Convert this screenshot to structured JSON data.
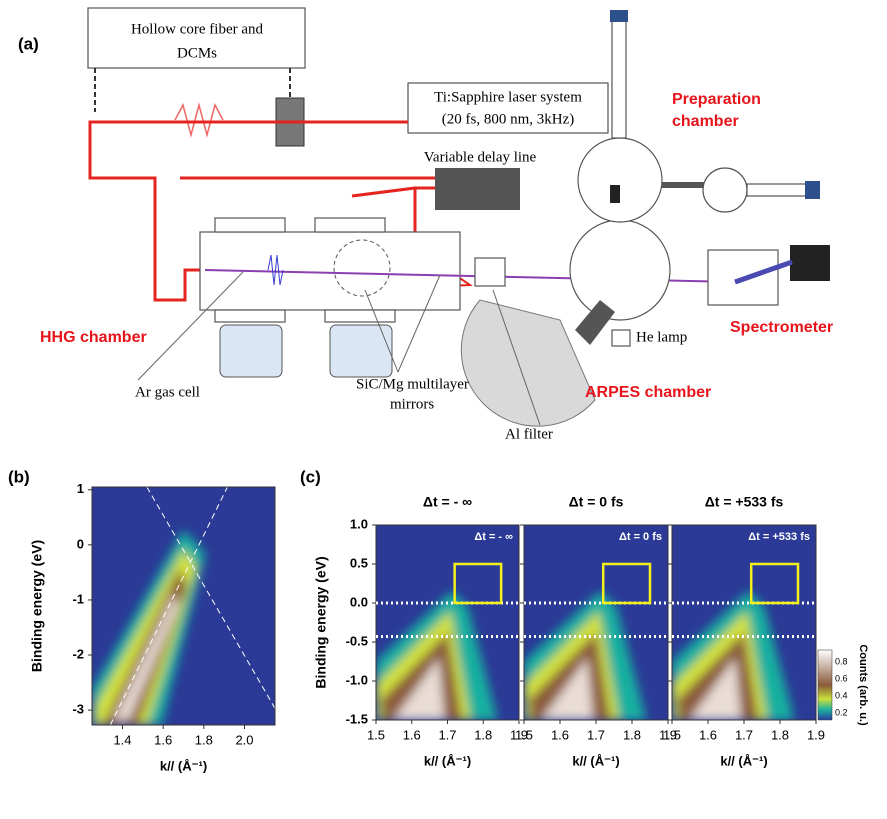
{
  "panel_a": {
    "label": "(a)",
    "fiber_box": [
      "Hollow core fiber and",
      "DCMs"
    ],
    "laser_box": [
      "Ti:Sapphire laser system",
      "(20 fs, 800 nm, 3kHz)"
    ],
    "delay_line": "Variable delay line",
    "preparation": [
      "Preparation",
      "chamber"
    ],
    "hhg": "HHG chamber",
    "gas_cell": "Ar gas cell",
    "mirrors": [
      "SiC/Mg multilayer",
      "mirrors"
    ],
    "al_filter": "Al filter",
    "he_lamp": "He lamp",
    "arpes": "ARPES chamber",
    "spectrometer": "Spectrometer"
  },
  "chart_data": [
    {
      "type": "heatmap",
      "label": "(b)",
      "ylabel": "Binding energy (eV)",
      "xlabel": "k// (Å⁻¹)",
      "xlim": [
        1.25,
        2.15
      ],
      "xticks": [
        1.4,
        1.6,
        1.8,
        {
          "value": 2.0,
          "label": "2.0"
        }
      ],
      "ylim": [
        -3.27,
        1.05
      ],
      "yticks": [
        1,
        0,
        -1,
        -2,
        -3
      ]
    },
    {
      "type": "heatmap",
      "label": "(c)",
      "title": "Δt = - ∞",
      "annotation": "Δt = - ∞",
      "ylabel": "Binding energy (eV)",
      "xlabel": "k// (Å⁻¹)",
      "xlim": [
        1.5,
        1.9
      ],
      "xticks": [
        1.5,
        1.6,
        1.7,
        1.8,
        1.9
      ],
      "ylim": [
        -1.5,
        1.0
      ],
      "yticks": [
        {
          "value": 1,
          "label": "1.0"
        },
        0.5,
        {
          "value": 0,
          "label": "0.0"
        },
        -0.5,
        {
          "value": -1,
          "label": "-1.0"
        },
        -1.5
      ],
      "hlines": [
        0,
        -0.43
      ],
      "box": {
        "x": [
          1.72,
          1.85
        ],
        "y": [
          0,
          0.5
        ]
      }
    },
    {
      "type": "heatmap",
      "title": "Δt = 0 fs",
      "annotation": "Δt = 0 fs",
      "xlabel": "k// (Å⁻¹)",
      "xlim": [
        1.5,
        1.9
      ],
      "xticks": [
        1.5,
        1.6,
        1.7,
        1.8,
        1.9
      ],
      "ylim": [
        -1.5,
        1.0
      ],
      "hlines": [
        0,
        -0.43
      ],
      "box": {
        "x": [
          1.72,
          1.85
        ],
        "y": [
          0,
          0.5
        ]
      }
    },
    {
      "type": "heatmap",
      "title": "Δt = +533 fs",
      "annotation": "Δt = +533 fs",
      "xlabel": "k// (Å⁻¹)",
      "xlim": [
        1.5,
        1.9
      ],
      "xticks": [
        1.5,
        1.6,
        1.7,
        1.8,
        1.9
      ],
      "ylim": [
        -1.5,
        1.0
      ],
      "hlines": [
        0,
        -0.43
      ],
      "box": {
        "x": [
          1.72,
          1.85
        ],
        "y": [
          0,
          0.5
        ]
      },
      "colorbar": {
        "label": "Counts (arb. u.)",
        "lim": [
          0.12,
          0.94
        ],
        "ticks": [
          0.2,
          0.4,
          0.6,
          0.8
        ]
      }
    }
  ]
}
